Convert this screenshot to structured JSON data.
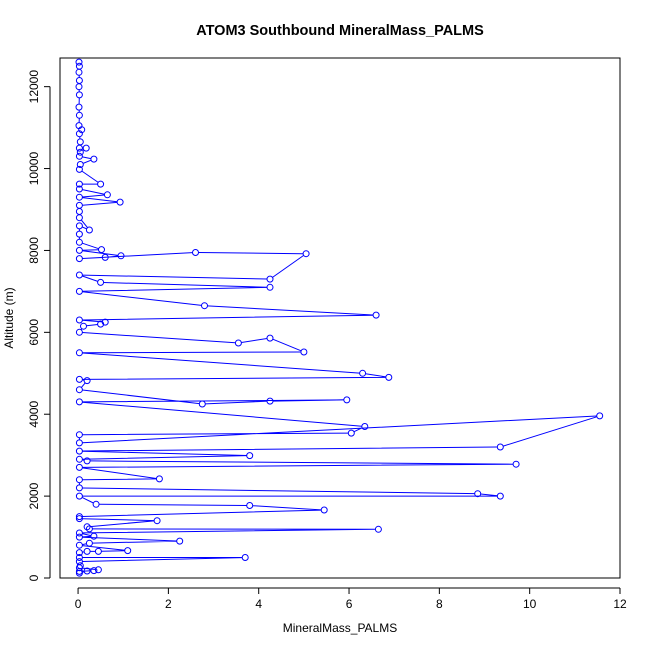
{
  "chart_data": {
    "type": "line",
    "title": "ATOM3 Southbound MineralMass_PALMS",
    "xlabel": "MineralMass_PALMS",
    "ylabel": "Altitude (m)",
    "xlim": [
      -0.4,
      12
    ],
    "ylim": [
      0,
      12700
    ],
    "xticks": [
      0,
      2,
      4,
      6,
      8,
      10,
      12
    ],
    "yticks": [
      0,
      2000,
      4000,
      6000,
      8000,
      10000,
      12000
    ],
    "grid": false,
    "legend": "none",
    "markers": "open-circle",
    "color": "#0000ff",
    "series": [
      {
        "points": [
          [
            0.02,
            12600
          ],
          [
            0.03,
            12500
          ],
          [
            0.02,
            12350
          ],
          [
            0.03,
            12150
          ],
          [
            0.02,
            12000
          ],
          [
            0.03,
            11800
          ],
          [
            0.02,
            11500
          ],
          [
            0.03,
            11300
          ],
          [
            0.02,
            11050
          ],
          [
            0.08,
            10950
          ],
          [
            0.03,
            10850
          ],
          [
            0.05,
            10650
          ],
          [
            0.03,
            10500
          ],
          [
            0.18,
            10500
          ],
          [
            0.05,
            10400
          ],
          [
            0.03,
            10300
          ],
          [
            0.35,
            10230
          ],
          [
            0.05,
            10100
          ],
          [
            0.03,
            9980
          ],
          [
            0.5,
            9620
          ],
          [
            0.03,
            9620
          ],
          [
            0.03,
            9500
          ],
          [
            0.65,
            9360
          ],
          [
            0.03,
            9300
          ],
          [
            0.93,
            9180
          ],
          [
            0.03,
            9100
          ],
          [
            0.03,
            8950
          ],
          [
            0.03,
            8800
          ],
          [
            0.25,
            8500
          ],
          [
            0.03,
            8600
          ],
          [
            0.03,
            8400
          ],
          [
            0.03,
            8200
          ],
          [
            0.52,
            8020
          ],
          [
            0.03,
            8000
          ],
          [
            0.95,
            7870
          ],
          [
            0.6,
            7830
          ],
          [
            0.03,
            7800
          ],
          [
            2.6,
            7950
          ],
          [
            5.05,
            7920
          ],
          [
            4.25,
            7300
          ],
          [
            0.03,
            7400
          ],
          [
            0.5,
            7220
          ],
          [
            4.25,
            7100
          ],
          [
            0.03,
            7000
          ],
          [
            2.8,
            6650
          ],
          [
            6.6,
            6420
          ],
          [
            0.03,
            6300
          ],
          [
            0.6,
            6250
          ],
          [
            0.5,
            6200
          ],
          [
            0.12,
            6150
          ],
          [
            0.03,
            6000
          ],
          [
            3.55,
            5740
          ],
          [
            4.25,
            5860
          ],
          [
            5.0,
            5520
          ],
          [
            0.03,
            5500
          ],
          [
            6.3,
            5000
          ],
          [
            6.88,
            4900
          ],
          [
            0.03,
            4850
          ],
          [
            0.2,
            4820
          ],
          [
            0.03,
            4600
          ],
          [
            2.75,
            4250
          ],
          [
            4.25,
            4320
          ],
          [
            5.95,
            4350
          ],
          [
            0.03,
            4300
          ],
          [
            6.35,
            3700
          ],
          [
            6.05,
            3540
          ],
          [
            0.03,
            3500
          ],
          [
            0.03,
            3300
          ],
          [
            11.55,
            3960
          ],
          [
            9.35,
            3200
          ],
          [
            0.03,
            3100
          ],
          [
            3.8,
            2990
          ],
          [
            0.03,
            2900
          ],
          [
            0.2,
            2860
          ],
          [
            9.7,
            2780
          ],
          [
            0.03,
            2700
          ],
          [
            1.8,
            2420
          ],
          [
            0.03,
            2400
          ],
          [
            0.03,
            2200
          ],
          [
            8.85,
            2060
          ],
          [
            9.35,
            2000
          ],
          [
            0.03,
            2000
          ],
          [
            0.4,
            1800
          ],
          [
            3.8,
            1770
          ],
          [
            5.45,
            1660
          ],
          [
            0.03,
            1500
          ],
          [
            0.03,
            1450
          ],
          [
            1.75,
            1400
          ],
          [
            0.2,
            1250
          ],
          [
            0.25,
            1200
          ],
          [
            6.65,
            1190
          ],
          [
            0.03,
            1100
          ],
          [
            0.35,
            1020
          ],
          [
            0.03,
            1000
          ],
          [
            2.25,
            900
          ],
          [
            0.25,
            850
          ],
          [
            0.03,
            800
          ],
          [
            1.1,
            670
          ],
          [
            0.45,
            650
          ],
          [
            0.2,
            650
          ],
          [
            0.03,
            620
          ],
          [
            0.03,
            500
          ],
          [
            3.7,
            500
          ],
          [
            0.03,
            400
          ],
          [
            0.05,
            300
          ],
          [
            0.03,
            250
          ],
          [
            0.45,
            200
          ],
          [
            0.35,
            180
          ],
          [
            0.03,
            160
          ],
          [
            0.2,
            170
          ],
          [
            0.03,
            120
          ]
        ]
      }
    ]
  }
}
